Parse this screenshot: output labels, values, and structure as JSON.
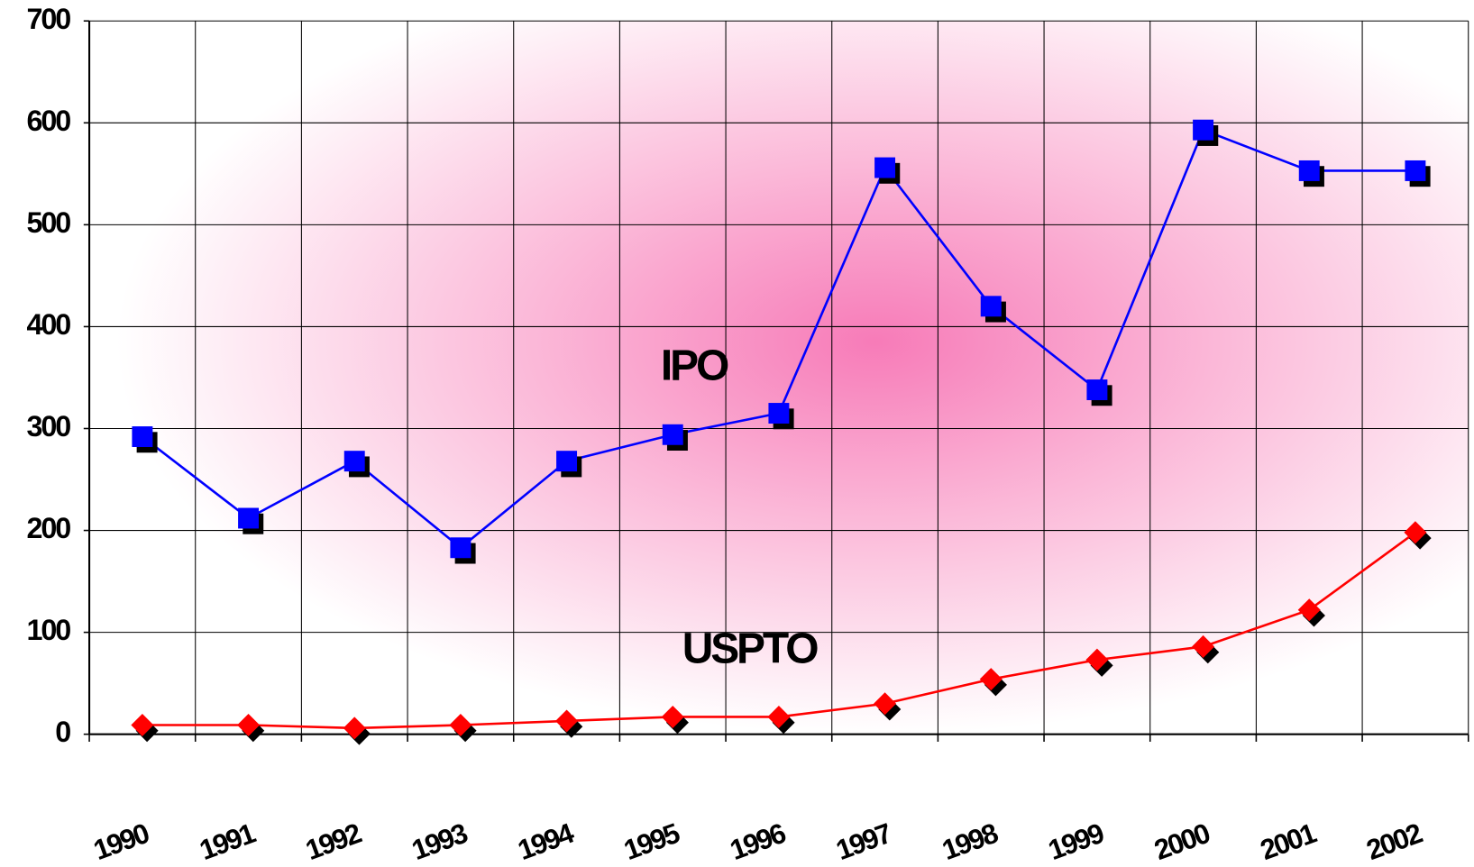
{
  "chart_data": {
    "type": "line",
    "categories": [
      "1990",
      "1991",
      "1992",
      "1993",
      "1994",
      "1995",
      "1996",
      "1997",
      "1998",
      "1999",
      "2000",
      "2001",
      "2002"
    ],
    "series": [
      {
        "name": "IPO",
        "color": "#0000ff",
        "marker": "square",
        "values": [
          292,
          212,
          268,
          183,
          268,
          294,
          315,
          556,
          420,
          338,
          593,
          553,
          553
        ]
      },
      {
        "name": "USPTO",
        "color": "#ff0000",
        "marker": "diamond",
        "values": [
          9,
          9,
          6,
          9,
          13,
          17,
          17,
          30,
          54,
          73,
          86,
          122,
          198
        ]
      }
    ],
    "ylim": [
      0,
      700
    ],
    "yticks": [
      0,
      100,
      200,
      300,
      400,
      500,
      600,
      700
    ],
    "grid": true
  }
}
